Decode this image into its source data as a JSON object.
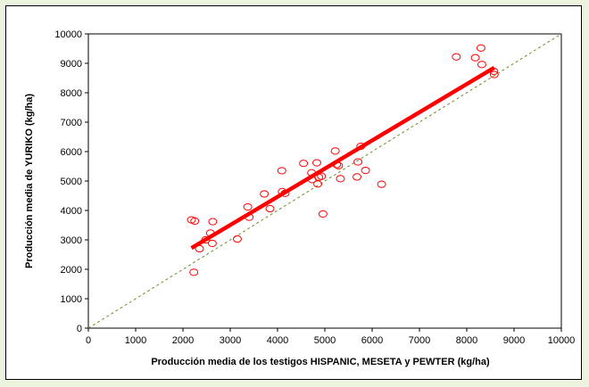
{
  "colors": {
    "background": "#ecf4df",
    "plot_background": "#ffffff",
    "marker": "#ff0000",
    "trend_line": "#ff0000",
    "reference_line": "#6b8e23"
  },
  "chart_data": {
    "type": "scatter",
    "title": "",
    "xlabel": "Producción media de los testigos HISPANIC, MESETA y PEWTER (kg/ha)",
    "ylabel": "Producción media de YURIKO  (kg/ha)",
    "xlim": [
      0,
      10000
    ],
    "ylim": [
      0,
      10000
    ],
    "x_ticks": [
      "0",
      "1000",
      "2000",
      "3000",
      "4000",
      "5000",
      "6000",
      "7000",
      "8000",
      "9000",
      "10000"
    ],
    "y_ticks": [
      "0",
      "1000",
      "2000",
      "3000",
      "4000",
      "5000",
      "6000",
      "7000",
      "8000",
      "9000",
      "10000"
    ],
    "grid": false,
    "marker": "open-circle",
    "points": [
      {
        "x": 2180,
        "y": 3680
      },
      {
        "x": 2250,
        "y": 3640
      },
      {
        "x": 2230,
        "y": 1900
      },
      {
        "x": 2350,
        "y": 2700
      },
      {
        "x": 2480,
        "y": 3000
      },
      {
        "x": 2580,
        "y": 3230
      },
      {
        "x": 2620,
        "y": 2880
      },
      {
        "x": 2630,
        "y": 3620
      },
      {
        "x": 3150,
        "y": 3030
      },
      {
        "x": 3370,
        "y": 4120
      },
      {
        "x": 3400,
        "y": 3770
      },
      {
        "x": 3720,
        "y": 4560
      },
      {
        "x": 3840,
        "y": 4060
      },
      {
        "x": 4090,
        "y": 5350
      },
      {
        "x": 4100,
        "y": 4640
      },
      {
        "x": 4160,
        "y": 4580
      },
      {
        "x": 4550,
        "y": 5600
      },
      {
        "x": 4720,
        "y": 5280
      },
      {
        "x": 4730,
        "y": 5050
      },
      {
        "x": 4830,
        "y": 5620
      },
      {
        "x": 4850,
        "y": 4900
      },
      {
        "x": 4870,
        "y": 5130
      },
      {
        "x": 4930,
        "y": 5160
      },
      {
        "x": 4960,
        "y": 3880
      },
      {
        "x": 5220,
        "y": 6020
      },
      {
        "x": 5250,
        "y": 5560
      },
      {
        "x": 5290,
        "y": 5520
      },
      {
        "x": 5330,
        "y": 5080
      },
      {
        "x": 5680,
        "y": 5140
      },
      {
        "x": 5700,
        "y": 5650
      },
      {
        "x": 5760,
        "y": 6180
      },
      {
        "x": 5860,
        "y": 5360
      },
      {
        "x": 6200,
        "y": 4890
      },
      {
        "x": 7780,
        "y": 9220
      },
      {
        "x": 8180,
        "y": 9190
      },
      {
        "x": 8300,
        "y": 9520
      },
      {
        "x": 8320,
        "y": 8960
      },
      {
        "x": 8570,
        "y": 8730
      },
      {
        "x": 8580,
        "y": 8620
      }
    ],
    "trend_line": {
      "x": [
        2180,
        8580
      ],
      "y": [
        2720,
        8850
      ]
    },
    "reference_line": {
      "x": [
        0,
        10000
      ],
      "y": [
        0,
        10000
      ]
    }
  }
}
